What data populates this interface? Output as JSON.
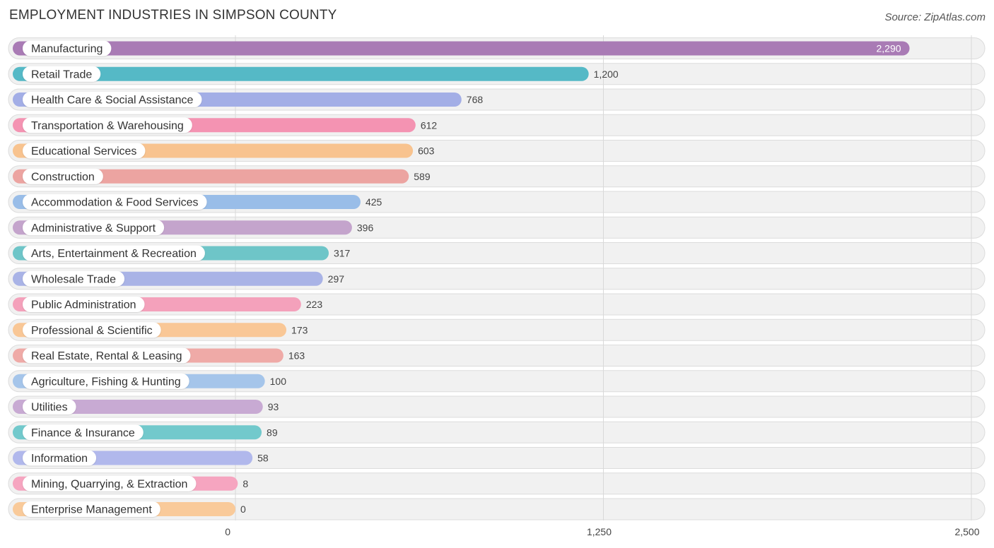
{
  "header": {
    "title": "EMPLOYMENT INDUSTRIES IN SIMPSON COUNTY",
    "source": "Source: ZipAtlas.com"
  },
  "chart_data": {
    "type": "bar",
    "orientation": "horizontal",
    "title": "EMPLOYMENT INDUSTRIES IN SIMPSON COUNTY",
    "xlabel": "",
    "ylabel": "",
    "xlim": [
      0,
      2500
    ],
    "ticks": [
      0,
      1250,
      2500
    ],
    "tick_labels": [
      "0",
      "1,250",
      "2,500"
    ],
    "grid": true,
    "categories": [
      "Manufacturing",
      "Retail Trade",
      "Health Care & Social Assistance",
      "Transportation & Warehousing",
      "Educational Services",
      "Construction",
      "Accommodation & Food Services",
      "Administrative & Support",
      "Arts, Entertainment & Recreation",
      "Wholesale Trade",
      "Public Administration",
      "Professional & Scientific",
      "Real Estate, Rental & Leasing",
      "Agriculture, Fishing & Hunting",
      "Utilities",
      "Finance & Insurance",
      "Information",
      "Mining, Quarrying, & Extraction",
      "Enterprise Management"
    ],
    "values": [
      2290,
      1200,
      768,
      612,
      603,
      589,
      425,
      396,
      317,
      297,
      223,
      173,
      163,
      100,
      93,
      89,
      58,
      8,
      0
    ],
    "value_labels": [
      "2,290",
      "1,200",
      "768",
      "612",
      "603",
      "589",
      "425",
      "396",
      "317",
      "297",
      "223",
      "173",
      "163",
      "100",
      "93",
      "89",
      "58",
      "8",
      "0"
    ],
    "colors": [
      "#a97bb5",
      "#55b9c6",
      "#a3aee6",
      "#f493b2",
      "#f8c38f",
      "#eca4a1",
      "#99bde8",
      "#c4a4cc",
      "#6ec5c8",
      "#a9b3e6",
      "#f4a1bb",
      "#f9c796",
      "#efaaa7",
      "#a5c5ea",
      "#c8aad3",
      "#72c9cc",
      "#b1b8ec",
      "#f6a5c0",
      "#f9ca9a"
    ]
  }
}
